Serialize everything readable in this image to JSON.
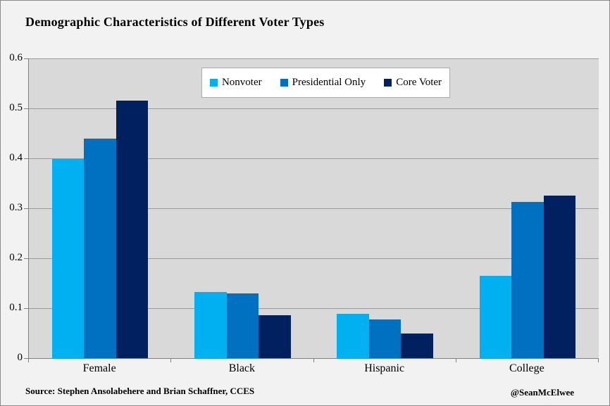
{
  "title": "Demographic Characteristics of Different Voter Types",
  "footer": {
    "source": "Source: Stephen Ansolabehere and Brian Schaffner, CCES",
    "credit": "@SeanMcElwee"
  },
  "colors": {
    "page_background": "#F2F2F2",
    "plot_background": "#D9D9D9",
    "axis": "#808080",
    "gridline": "#9b9b9b",
    "legend_border": "#ababab",
    "nonvoter": "#00B0F0",
    "presidential_only": "#0071C1",
    "core_voter": "#002060"
  },
  "chart_data": {
    "type": "bar",
    "title": "Demographic Characteristics of Different Voter Types",
    "categories": [
      "Female",
      "Black",
      "Hispanic",
      "College"
    ],
    "series": [
      {
        "name": "Nonvoter",
        "color": "#00B0F0",
        "values": [
          0.398,
          0.133,
          0.089,
          0.165
        ]
      },
      {
        "name": "Presidential Only",
        "color": "#0071C1",
        "values": [
          0.439,
          0.13,
          0.078,
          0.313
        ]
      },
      {
        "name": "Core Voter",
        "color": "#002060",
        "values": [
          0.515,
          0.086,
          0.05,
          0.326
        ]
      }
    ],
    "xlabel": "",
    "ylabel": "",
    "ylim": [
      0,
      0.6
    ],
    "ytick_interval": 0.1,
    "ytick_labels": [
      "0",
      "0.1",
      "0.2",
      "0.3",
      "0.4",
      "0.5",
      "0.6"
    ],
    "grid": true,
    "legend_position": "top-center-inside-plot"
  }
}
